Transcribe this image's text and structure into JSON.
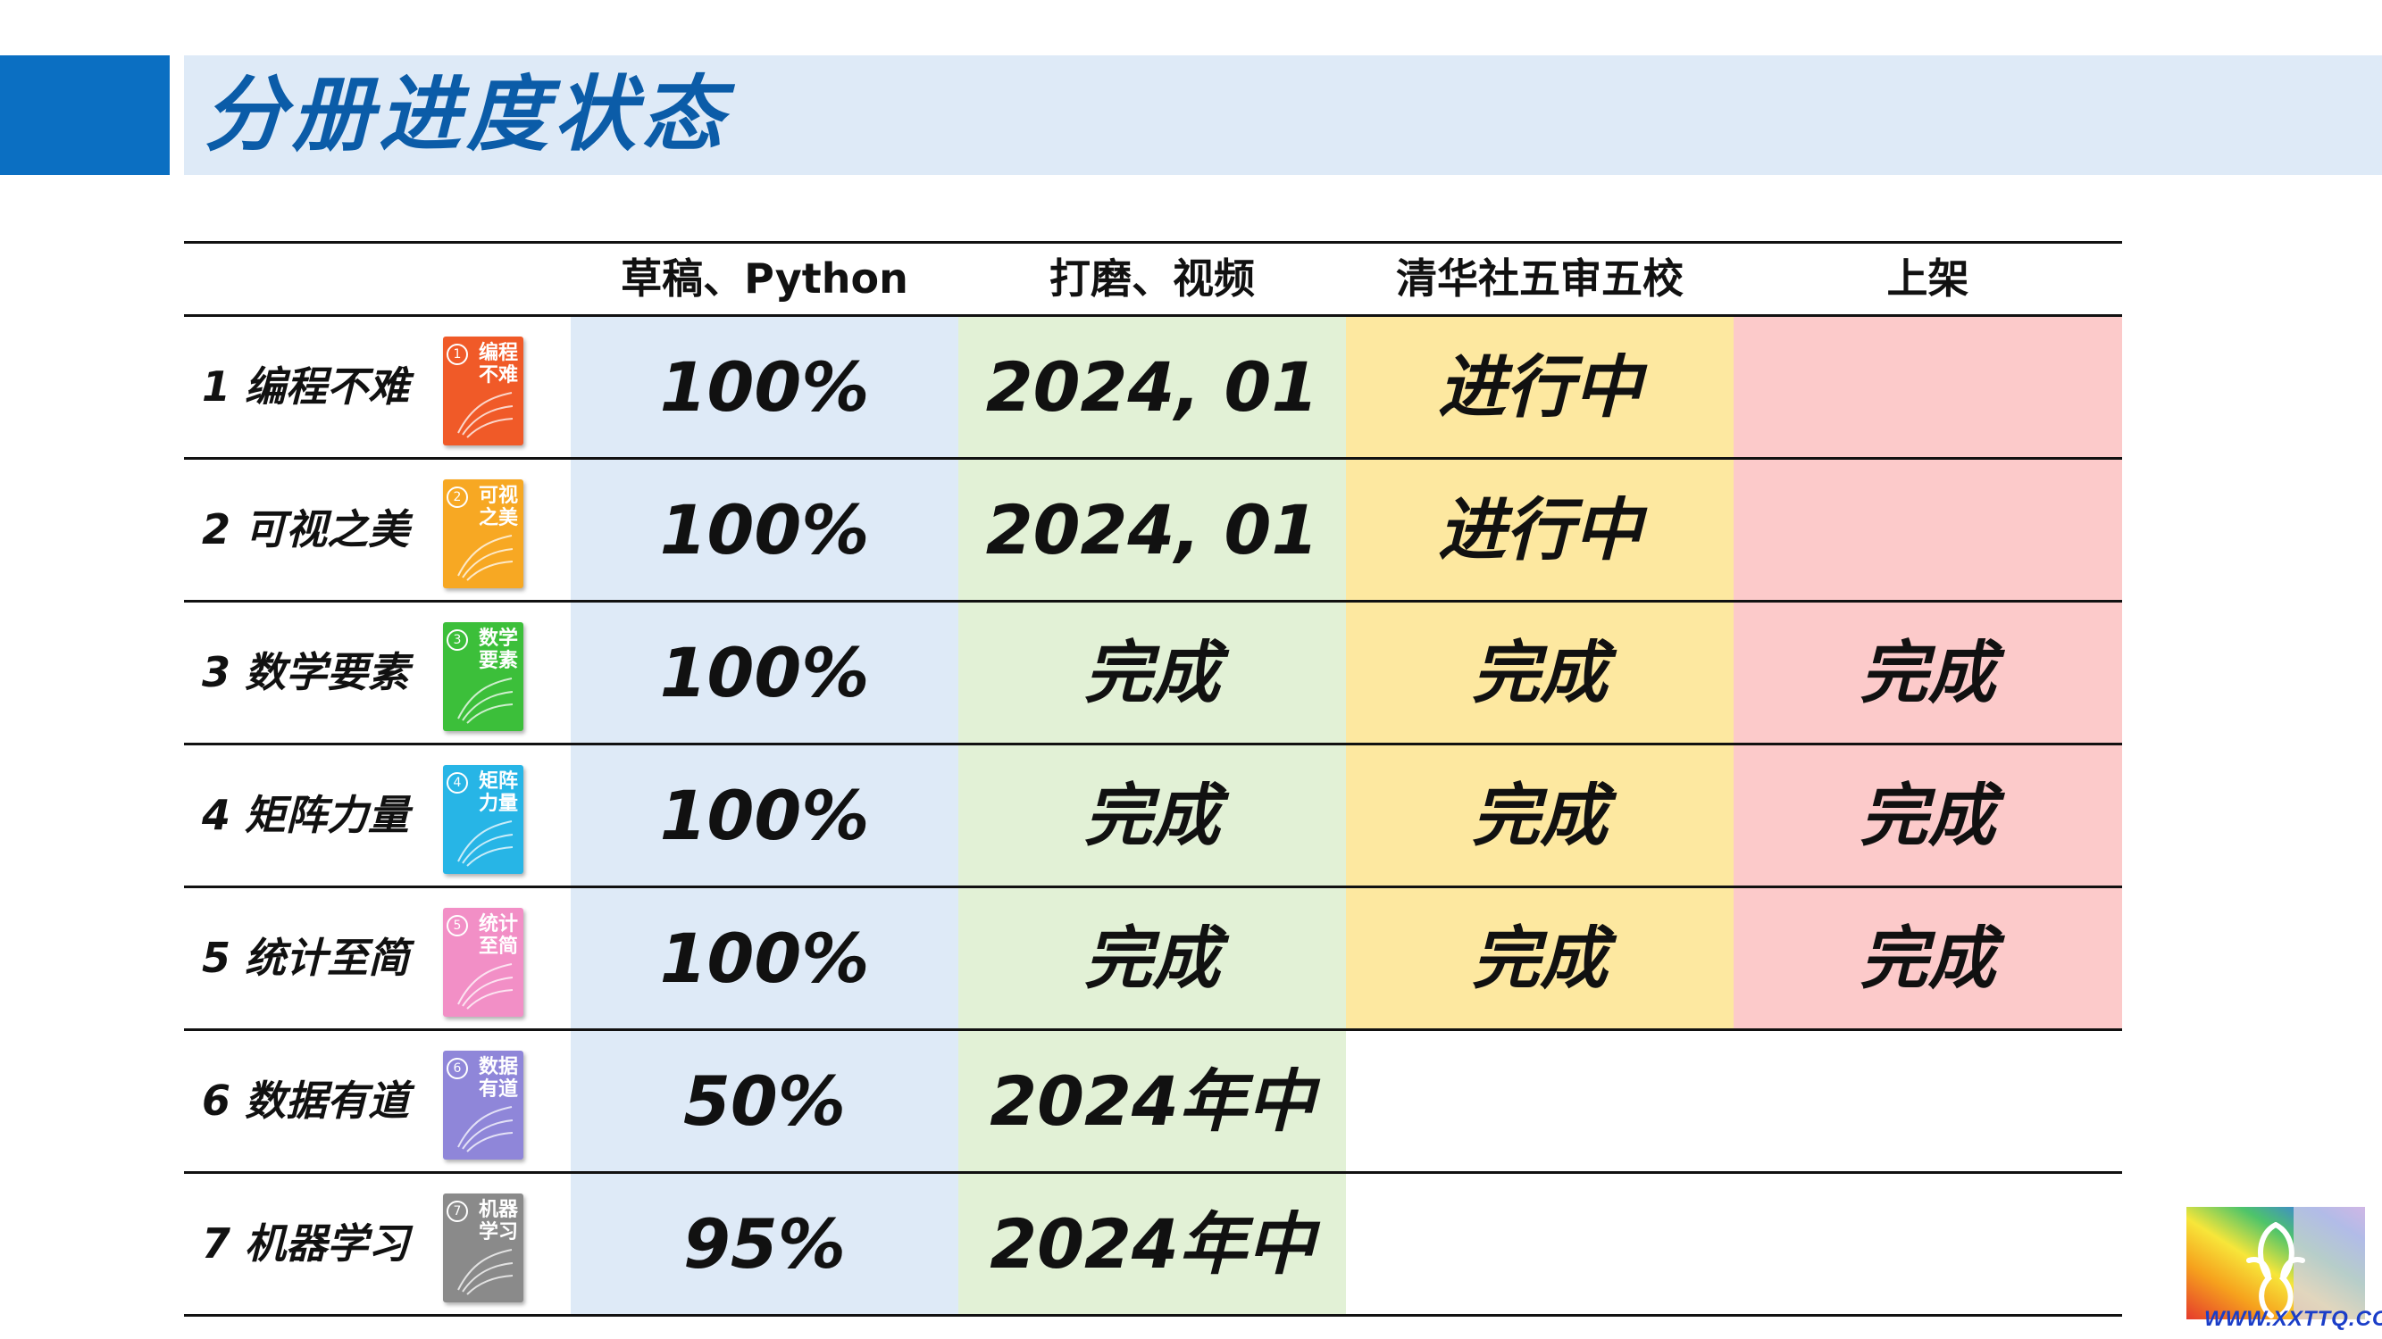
{
  "page": {
    "title": "分册进度状态"
  },
  "table": {
    "headers": [
      "",
      "草稿、Python",
      "打磨、视频",
      "清华社五审五校",
      "上架"
    ],
    "rows": [
      {
        "label": "1 编程不难",
        "cover_title": "编程不难",
        "cover_num": "1",
        "cover_color": "#f05a28",
        "cells": [
          "100%",
          "2024, 01",
          "进行中",
          ""
        ]
      },
      {
        "label": "2 可视之美",
        "cover_title": "可视之美",
        "cover_num": "2",
        "cover_color": "#f7a823",
        "cells": [
          "100%",
          "2024, 01",
          "进行中",
          ""
        ]
      },
      {
        "label": "3 数学要素",
        "cover_title": "数学要素",
        "cover_num": "3",
        "cover_color": "#3cbf3a",
        "cells": [
          "100%",
          "完成",
          "完成",
          "完成"
        ]
      },
      {
        "label": "4 矩阵力量",
        "cover_title": "矩阵力量",
        "cover_num": "4",
        "cover_color": "#27b5e6",
        "cells": [
          "100%",
          "完成",
          "完成",
          "完成"
        ]
      },
      {
        "label": "5 统计至简",
        "cover_title": "统计至简",
        "cover_num": "5",
        "cover_color": "#f28fc6",
        "cells": [
          "100%",
          "完成",
          "完成",
          "完成"
        ]
      },
      {
        "label": "6 数据有道",
        "cover_title": "数据有道",
        "cover_num": "6",
        "cover_color": "#8f86d9",
        "cells": [
          "50%",
          "2024年中",
          "",
          ""
        ]
      },
      {
        "label": "7 机器学习",
        "cover_title": "机器学习",
        "cover_num": "7",
        "cover_color": "#8a8a8a",
        "cells": [
          "95%",
          "2024年中",
          "",
          ""
        ]
      }
    ]
  },
  "watermark": {
    "text": "WWW.XXTTQ.COM"
  }
}
